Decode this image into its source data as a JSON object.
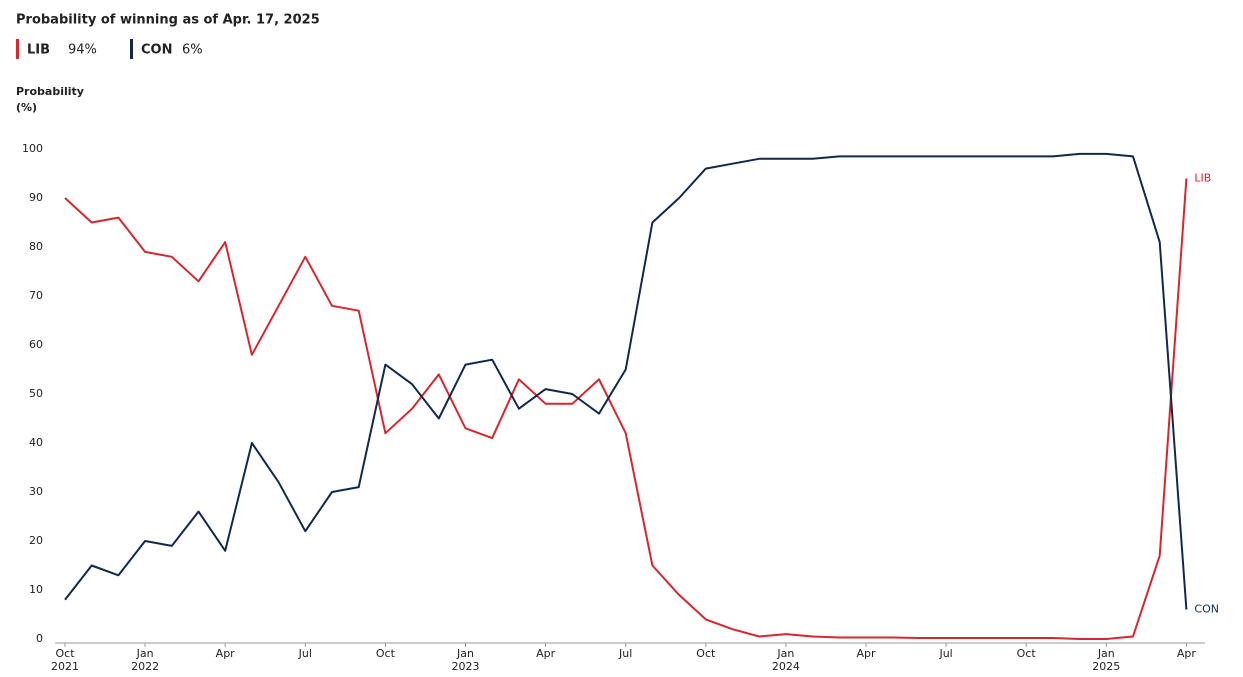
{
  "chart_data": {
    "type": "line",
    "title": "Probability of winning as of Apr. 17, 2025",
    "ylabel": "Probability (%)",
    "x": [
      "2021-10",
      "2021-11",
      "2021-12",
      "2022-01",
      "2022-02",
      "2022-03",
      "2022-04",
      "2022-05",
      "2022-06",
      "2022-07",
      "2022-08",
      "2022-09",
      "2022-10",
      "2022-11",
      "2022-12",
      "2023-01",
      "2023-02",
      "2023-03",
      "2023-04",
      "2023-05",
      "2023-06",
      "2023-07",
      "2023-08",
      "2023-09",
      "2023-10",
      "2023-11",
      "2023-12",
      "2024-01",
      "2024-02",
      "2024-03",
      "2024-04",
      "2024-05",
      "2024-06",
      "2024-07",
      "2024-08",
      "2024-09",
      "2024-10",
      "2024-11",
      "2024-12",
      "2025-01",
      "2025-02",
      "2025-03",
      "2025-04"
    ],
    "series": [
      {
        "name": "LIB",
        "color": "#d7262e",
        "latest": {
          "value": 94,
          "label": "94%"
        },
        "values": [
          90,
          85,
          86,
          79,
          78,
          73,
          81,
          58,
          68,
          78,
          68,
          67,
          42,
          47,
          54,
          43,
          41,
          53,
          48,
          48,
          53,
          42,
          15,
          9,
          4,
          2,
          0.5,
          1,
          0.5,
          0.3,
          0.3,
          0.3,
          0.2,
          0.2,
          0.2,
          0.2,
          0.2,
          0.2,
          0,
          0,
          0.5,
          17,
          94
        ]
      },
      {
        "name": "CON",
        "color": "#12294b",
        "latest": {
          "value": 6,
          "label": "6%"
        },
        "values": [
          8,
          15,
          13,
          20,
          19,
          26,
          18,
          40,
          32,
          22,
          30,
          31,
          56,
          52,
          45,
          56,
          57,
          47,
          51,
          50,
          46,
          55,
          85,
          90,
          96,
          97,
          98,
          98,
          98,
          98.5,
          98.5,
          98.5,
          98.5,
          98.5,
          98.5,
          98.5,
          98.5,
          98.5,
          99,
          99,
          98.5,
          81,
          6
        ]
      }
    ],
    "xticks": [
      {
        "value": "2021-10",
        "label": "Oct 2021"
      },
      {
        "value": "2022-01",
        "label": "Jan 2022"
      },
      {
        "value": "2022-04",
        "label": "Apr"
      },
      {
        "value": "2022-07",
        "label": "Jul"
      },
      {
        "value": "2022-10",
        "label": "Oct"
      },
      {
        "value": "2023-01",
        "label": "Jan 2023"
      },
      {
        "value": "2023-04",
        "label": "Apr"
      },
      {
        "value": "2023-07",
        "label": "Jul"
      },
      {
        "value": "2023-10",
        "label": "Oct"
      },
      {
        "value": "2024-01",
        "label": "Jan 2024"
      },
      {
        "value": "2024-04",
        "label": "Apr"
      },
      {
        "value": "2024-07",
        "label": "Jul"
      },
      {
        "value": "2024-10",
        "label": "Oct"
      },
      {
        "value": "2025-01",
        "label": "Jan 2025"
      },
      {
        "value": "2025-04",
        "label": "Apr"
      }
    ],
    "ylim": [
      0,
      100
    ],
    "yticks": [
      0,
      10,
      20,
      30,
      40,
      50,
      60,
      70,
      80,
      90,
      100
    ]
  }
}
